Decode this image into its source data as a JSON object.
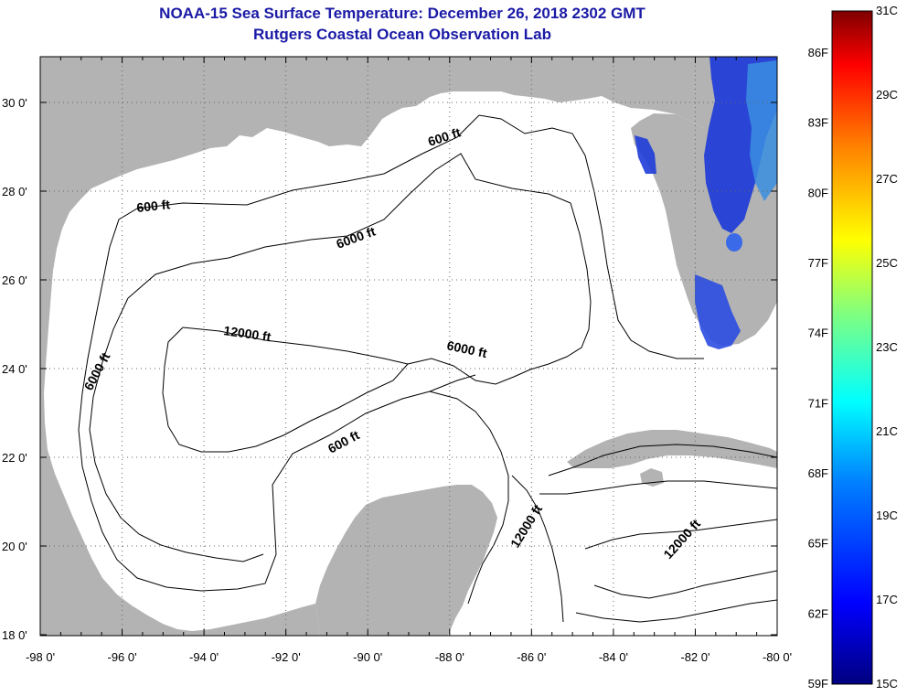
{
  "header": {
    "title": "NOAA-15 Sea Surface Temperature:  December 26, 2018 2302 GMT",
    "subtitle": "Rutgers Coastal Ocean Observation Lab"
  },
  "map": {
    "lon_ticks": [
      "-98 0'",
      "-96 0'",
      "-94 0'",
      "-92 0'",
      "-90 0'",
      "-88 0'",
      "-86 0'",
      "-84 0'",
      "-82 0'",
      "-80 0'"
    ],
    "lat_ticks": [
      "30 0'",
      "28 0'",
      "26 0'",
      "24 0'",
      "22 0'",
      "20 0'",
      "18 0'"
    ],
    "contour_labels": [
      "600 ft",
      "600 ft",
      "6000 ft",
      "6000 ft",
      "12000 ft",
      "6000 ft",
      "600 ft",
      "12000 ft",
      "12000 ft"
    ],
    "colors": {
      "land": "#b3b3b3",
      "water": "#ffffff",
      "title": "#1a1aa6"
    }
  },
  "colorbar": {
    "f_labels": [
      "86F",
      "83F",
      "80F",
      "77F",
      "74F",
      "71F",
      "68F",
      "65F",
      "62F",
      "59F"
    ],
    "c_labels": [
      "31C",
      "29C",
      "27C",
      "25C",
      "23C",
      "21C",
      "19C",
      "17C",
      "15C"
    ],
    "range_c": [
      15,
      31
    ]
  }
}
